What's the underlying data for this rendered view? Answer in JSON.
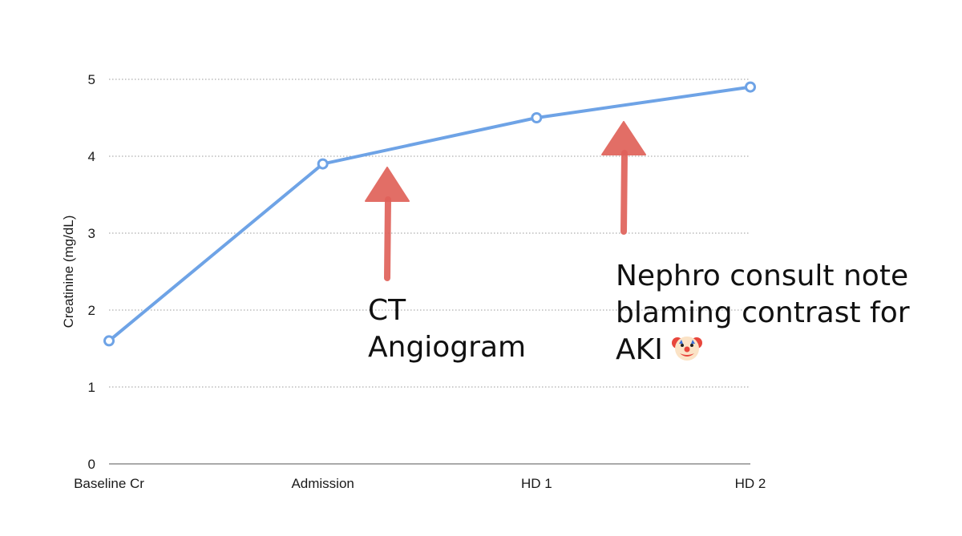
{
  "chart_data": {
    "type": "line",
    "categories": [
      "Baseline Cr",
      "Admission",
      "HD 1",
      "HD 2"
    ],
    "series": [
      {
        "values": [
          1.6,
          3.9,
          4.5,
          4.9
        ],
        "color": "#6ea3e6"
      }
    ],
    "title": "",
    "xlabel": "",
    "ylabel": "Creatinine (mg/dL)",
    "ylim": [
      0,
      5
    ],
    "yticks": [
      0,
      1,
      2,
      3,
      4,
      5
    ],
    "grid": "horizontal dotted",
    "legend": "none",
    "annotations": [
      {
        "text": "CT\nAngiogram",
        "arrow_color": "#e0625a",
        "points_to": "between Admission and HD 1"
      },
      {
        "text": "Nephro consult note\nblaming contrast for\nAKI",
        "icon": "clown-face-icon",
        "arrow_color": "#e0625a",
        "points_to": "between HD 1 and HD 2"
      }
    ]
  }
}
